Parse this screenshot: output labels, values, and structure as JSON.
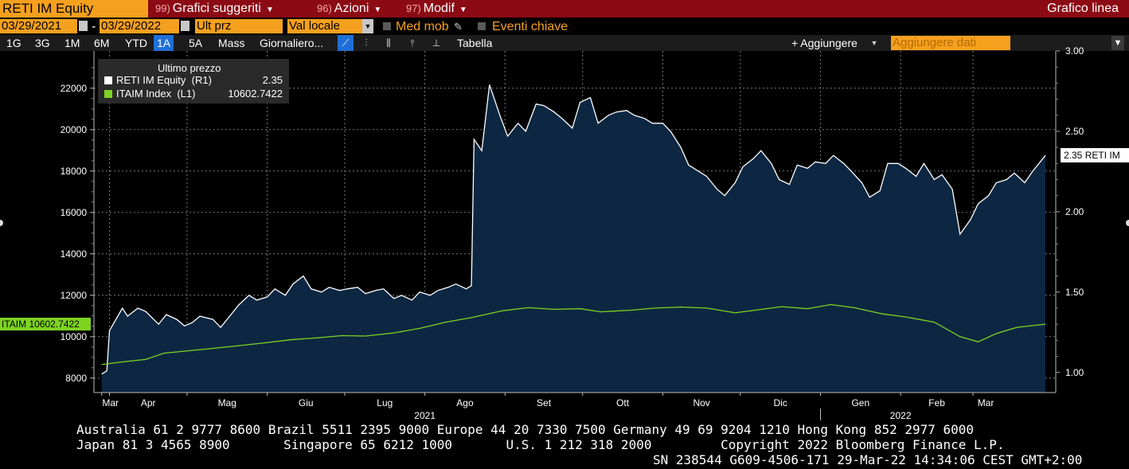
{
  "topbar": {
    "ticker": "RETI IM Equity",
    "menu1_num": "99)",
    "menu1": "Grafici suggeriti",
    "menu2_num": "96)",
    "menu2": "Azioni",
    "menu3_num": "97)",
    "menu3": "Modif",
    "chart_title": "Grafico linea"
  },
  "controls": {
    "start_date": "03/29/2021",
    "end_date": "03/29/2022",
    "separator": "-",
    "price_field": "Ult prz",
    "currency": "Val locale",
    "moving_avg": "Med mob",
    "key_events": "Eventi chiave"
  },
  "toolbar": {
    "periods": [
      "1G",
      "3G",
      "1M",
      "6M",
      "YTD",
      "1A",
      "5A",
      "Mass"
    ],
    "selected_period": "1A",
    "frequency": "Giornaliero...",
    "table": "Tabella",
    "add": "+ Aggiungere",
    "add_data_placeholder": "Aggiungere dati"
  },
  "legend": {
    "header": "Ultimo prezzo",
    "items": [
      {
        "name": "RETI IM Equity  (R1)",
        "value": "2.35",
        "color": "#ffffff"
      },
      {
        "name": "ITAIM Index  (L1)",
        "value": "10602.7422",
        "color": "#7ed321"
      }
    ]
  },
  "tags": {
    "left": "ITAIM 10602.7422",
    "right": "2.35 RETI IM"
  },
  "footer": {
    "line1": "Australia 61 2 9777 8600 Brazil 5511 2395 9000 Europe 44 20 7330 7500 Germany 49 69 9204 1210 Hong Kong 852 2977 6000",
    "line2": "Japan 81 3 4565 8900       Singapore 65 6212 1000       U.S. 1 212 318 2000         Copyright 2022 Bloomberg Finance L.P.",
    "line3": "SN 238544 G609-4506-171 29-Mar-22 14:34:06 CEST GMT+2:00"
  },
  "chart_data": {
    "type": "line",
    "x_months": [
      "Mar",
      "Apr",
      "Mag",
      "Giu",
      "Lug",
      "Ago",
      "Set",
      "Ott",
      "Nov",
      "Dic",
      "Gen",
      "Feb",
      "Mar"
    ],
    "year_labels": [
      {
        "after_month": "Ago",
        "year": "2021"
      },
      {
        "after_month": "Feb",
        "year": "2022"
      }
    ],
    "left_axis": {
      "ticks": [
        "8000",
        "10000",
        "12000",
        "14000",
        "16000",
        "18000",
        "20000",
        "22000"
      ],
      "ylim": [
        7300,
        23800
      ]
    },
    "right_axis": {
      "ticks": [
        "1.00",
        "1.50",
        "2.00",
        "2.50",
        "3.00"
      ],
      "ylim": [
        0.875,
        3.0
      ]
    },
    "series": [
      {
        "name": "RETI IM Equity",
        "axis": "right",
        "color": "#ffffff",
        "fill": "#0d2742",
        "points": [
          [
            "2021-03-29",
            0.99
          ],
          [
            "2021-03-31",
            1.01
          ],
          [
            "2021-04-01",
            1.26
          ],
          [
            "2021-04-06",
            1.4
          ],
          [
            "2021-04-08",
            1.35
          ],
          [
            "2021-04-12",
            1.4
          ],
          [
            "2021-04-15",
            1.38
          ],
          [
            "2021-04-20",
            1.3
          ],
          [
            "2021-04-23",
            1.36
          ],
          [
            "2021-04-27",
            1.33
          ],
          [
            "2021-04-30",
            1.29
          ],
          [
            "2021-05-03",
            1.31
          ],
          [
            "2021-05-06",
            1.35
          ],
          [
            "2021-05-11",
            1.33
          ],
          [
            "2021-05-14",
            1.28
          ],
          [
            "2021-05-18",
            1.36
          ],
          [
            "2021-05-21",
            1.42
          ],
          [
            "2021-05-25",
            1.48
          ],
          [
            "2021-05-28",
            1.45
          ],
          [
            "2021-06-01",
            1.47
          ],
          [
            "2021-06-04",
            1.52
          ],
          [
            "2021-06-08",
            1.48
          ],
          [
            "2021-06-11",
            1.55
          ],
          [
            "2021-06-15",
            1.6
          ],
          [
            "2021-06-18",
            1.52
          ],
          [
            "2021-06-22",
            1.5
          ],
          [
            "2021-06-25",
            1.53
          ],
          [
            "2021-06-29",
            1.51
          ],
          [
            "2021-07-02",
            1.52
          ],
          [
            "2021-07-06",
            1.53
          ],
          [
            "2021-07-09",
            1.49
          ],
          [
            "2021-07-13",
            1.51
          ],
          [
            "2021-07-16",
            1.52
          ],
          [
            "2021-07-20",
            1.46
          ],
          [
            "2021-07-23",
            1.48
          ],
          [
            "2021-07-27",
            1.45
          ],
          [
            "2021-07-30",
            1.5
          ],
          [
            "2021-08-03",
            1.48
          ],
          [
            "2021-08-06",
            1.51
          ],
          [
            "2021-08-10",
            1.53
          ],
          [
            "2021-08-13",
            1.55
          ],
          [
            "2021-08-17",
            1.52
          ],
          [
            "2021-08-19",
            1.54
          ],
          [
            "2021-08-20",
            2.45
          ],
          [
            "2021-08-23",
            2.38
          ],
          [
            "2021-08-26",
            2.79
          ],
          [
            "2021-08-30",
            2.6
          ],
          [
            "2021-09-02",
            2.47
          ],
          [
            "2021-09-06",
            2.55
          ],
          [
            "2021-09-09",
            2.5
          ],
          [
            "2021-09-13",
            2.67
          ],
          [
            "2021-09-16",
            2.66
          ],
          [
            "2021-09-20",
            2.62
          ],
          [
            "2021-09-23",
            2.58
          ],
          [
            "2021-09-27",
            2.52
          ],
          [
            "2021-09-30",
            2.68
          ],
          [
            "2021-10-04",
            2.71
          ],
          [
            "2021-10-07",
            2.55
          ],
          [
            "2021-10-11",
            2.6
          ],
          [
            "2021-10-14",
            2.62
          ],
          [
            "2021-10-18",
            2.63
          ],
          [
            "2021-10-21",
            2.6
          ],
          [
            "2021-10-25",
            2.58
          ],
          [
            "2021-10-28",
            2.55
          ],
          [
            "2021-11-01",
            2.55
          ],
          [
            "2021-11-04",
            2.5
          ],
          [
            "2021-11-08",
            2.4
          ],
          [
            "2021-11-11",
            2.29
          ],
          [
            "2021-11-15",
            2.25
          ],
          [
            "2021-11-18",
            2.22
          ],
          [
            "2021-11-22",
            2.14
          ],
          [
            "2021-11-25",
            2.1
          ],
          [
            "2021-11-29",
            2.18
          ],
          [
            "2021-12-02",
            2.28
          ],
          [
            "2021-12-06",
            2.33
          ],
          [
            "2021-12-09",
            2.38
          ],
          [
            "2021-12-13",
            2.3
          ],
          [
            "2021-12-16",
            2.2
          ],
          [
            "2021-12-20",
            2.17
          ],
          [
            "2021-12-23",
            2.29
          ],
          [
            "2021-12-27",
            2.27
          ],
          [
            "2021-12-30",
            2.31
          ],
          [
            "2022-01-03",
            2.3
          ],
          [
            "2022-01-06",
            2.35
          ],
          [
            "2022-01-10",
            2.3
          ],
          [
            "2022-01-13",
            2.25
          ],
          [
            "2022-01-17",
            2.18
          ],
          [
            "2022-01-20",
            2.09
          ],
          [
            "2022-01-24",
            2.13
          ],
          [
            "2022-01-27",
            2.3
          ],
          [
            "2022-01-31",
            2.3
          ],
          [
            "2022-02-03",
            2.27
          ],
          [
            "2022-02-07",
            2.22
          ],
          [
            "2022-02-10",
            2.3
          ],
          [
            "2022-02-14",
            2.2
          ],
          [
            "2022-02-17",
            2.23
          ],
          [
            "2022-02-21",
            2.14
          ],
          [
            "2022-02-24",
            1.86
          ],
          [
            "2022-02-28",
            1.95
          ],
          [
            "2022-03-03",
            2.05
          ],
          [
            "2022-03-07",
            2.1
          ],
          [
            "2022-03-10",
            2.18
          ],
          [
            "2022-03-14",
            2.2
          ],
          [
            "2022-03-17",
            2.24
          ],
          [
            "2022-03-21",
            2.18
          ],
          [
            "2022-03-24",
            2.25
          ],
          [
            "2022-03-29",
            2.35
          ]
        ]
      },
      {
        "name": "ITAIM Index",
        "axis": "left",
        "color": "#7ed321",
        "fill": "none",
        "points": [
          [
            "2021-03-29",
            8650
          ],
          [
            "2021-04-06",
            8780
          ],
          [
            "2021-04-15",
            8900
          ],
          [
            "2021-04-22",
            9200
          ],
          [
            "2021-04-30",
            9300
          ],
          [
            "2021-05-10",
            9420
          ],
          [
            "2021-05-20",
            9550
          ],
          [
            "2021-05-31",
            9700
          ],
          [
            "2021-06-10",
            9850
          ],
          [
            "2021-06-21",
            9950
          ],
          [
            "2021-06-30",
            10050
          ],
          [
            "2021-07-09",
            10030
          ],
          [
            "2021-07-20",
            10180
          ],
          [
            "2021-07-30",
            10400
          ],
          [
            "2021-08-09",
            10700
          ],
          [
            "2021-08-19",
            10920
          ],
          [
            "2021-08-31",
            11250
          ],
          [
            "2021-09-10",
            11400
          ],
          [
            "2021-09-20",
            11320
          ],
          [
            "2021-09-30",
            11350
          ],
          [
            "2021-10-08",
            11200
          ],
          [
            "2021-10-20",
            11280
          ],
          [
            "2021-10-29",
            11380
          ],
          [
            "2021-11-08",
            11430
          ],
          [
            "2021-11-18",
            11380
          ],
          [
            "2021-11-29",
            11150
          ],
          [
            "2021-12-08",
            11300
          ],
          [
            "2021-12-17",
            11450
          ],
          [
            "2021-12-27",
            11350
          ],
          [
            "2022-01-05",
            11550
          ],
          [
            "2022-01-14",
            11400
          ],
          [
            "2022-01-25",
            11100
          ],
          [
            "2022-02-03",
            10950
          ],
          [
            "2022-02-14",
            10700
          ],
          [
            "2022-02-24",
            10000
          ],
          [
            "2022-03-03",
            9750
          ],
          [
            "2022-03-10",
            10150
          ],
          [
            "2022-03-18",
            10450
          ],
          [
            "2022-03-29",
            10602.7422
          ]
        ]
      }
    ]
  }
}
